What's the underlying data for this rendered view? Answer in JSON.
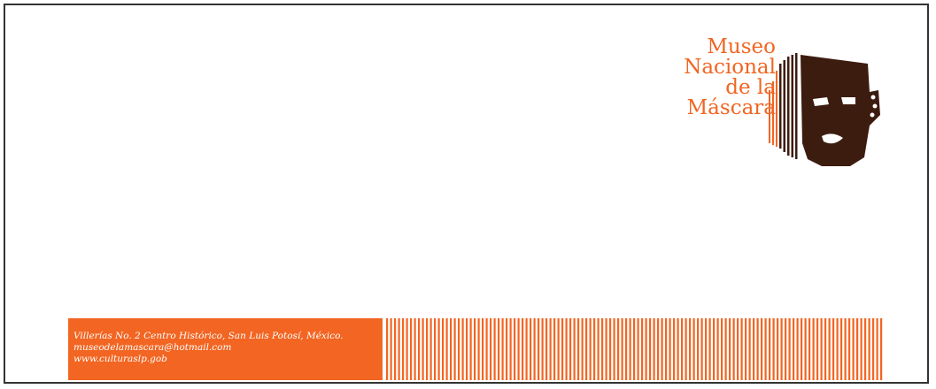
{
  "logo": {
    "name_lines": [
      "Museo",
      "Nacional",
      "de la",
      "Máscara"
    ],
    "icon": "mask-icon",
    "colors": {
      "orange": "#f26522",
      "brown": "#3d1c10"
    }
  },
  "footer": {
    "address": "Villerías No. 2 Centro Histórico,  San Luis Potosí, México.",
    "email": "museodelamascara@hotmail.com",
    "website": "www.culturaslp.gob",
    "color": "#f26522"
  }
}
